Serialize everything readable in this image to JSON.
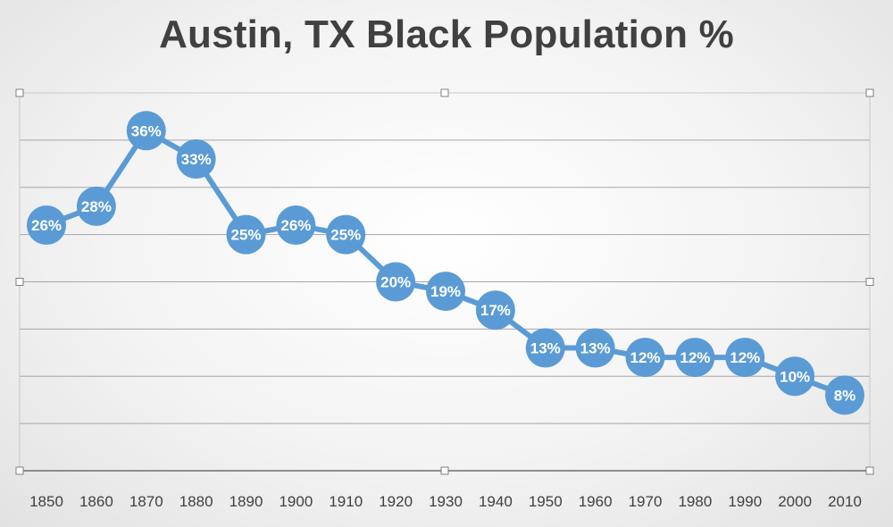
{
  "chart_data": {
    "type": "line",
    "title": "Austin, TX Black Population %",
    "xlabel": "",
    "ylabel": "",
    "x": [
      "1850",
      "1860",
      "1870",
      "1880",
      "1890",
      "1900",
      "1910",
      "1920",
      "1930",
      "1940",
      "1950",
      "1960",
      "1970",
      "1980",
      "1990",
      "2000",
      "2010"
    ],
    "series": [
      {
        "values": [
          26,
          28,
          36,
          33,
          25,
          26,
          25,
          20,
          19,
          17,
          13,
          13,
          12,
          12,
          12,
          10,
          8
        ],
        "labels": [
          "26%",
          "28%",
          "36%",
          "33%",
          "25%",
          "26%",
          "25%",
          "20%",
          "19%",
          "17%",
          "13%",
          "13%",
          "12%",
          "12%",
          "12%",
          "10%",
          "8%"
        ]
      }
    ],
    "ylim": [
      0,
      40
    ],
    "yticks": [
      0,
      5,
      10,
      15,
      20,
      25,
      30,
      35,
      40
    ],
    "grid": true,
    "show_y_axis_labels": false,
    "legend": "none",
    "colors": {
      "line": "#5b9bd5",
      "grid": "#a6a6a6",
      "axis": "#6f6f6f",
      "tick_text": "#404040",
      "title": "#404040",
      "label_text": "#ffffff"
    }
  }
}
